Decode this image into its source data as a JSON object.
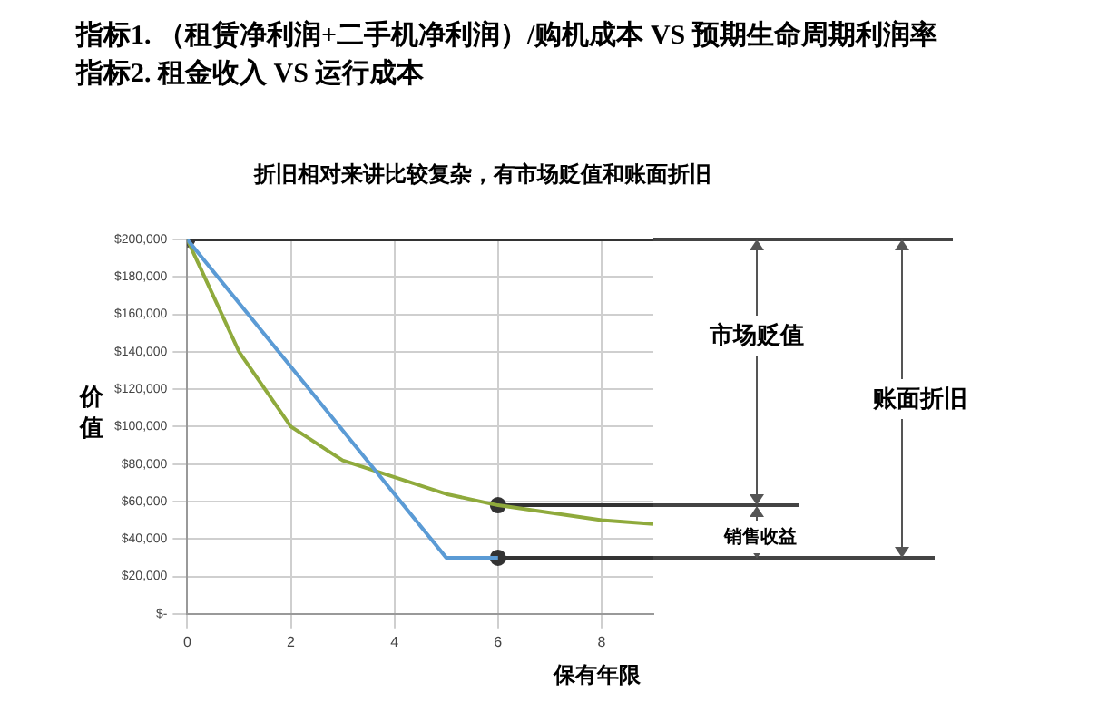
{
  "chart_data": {
    "type": "line",
    "title": "指标1. （租赁净利润+二手机净利润）/购机成本 VS 预期生命周期利润率",
    "subtitle": "指标2.  租金收入 VS 运行成本",
    "xlabel": "保有年限",
    "ylabel": "价值",
    "xlim": [
      0,
      9
    ],
    "xticks": [
      0,
      2,
      4,
      6,
      8
    ],
    "ylim": [
      0,
      200000
    ],
    "yticks": [
      {
        "value": 0,
        "label": "$-"
      },
      {
        "value": 20000,
        "label": "$20,000"
      },
      {
        "value": 40000,
        "label": "$40,000"
      },
      {
        "value": 60000,
        "label": "$60,000"
      },
      {
        "value": 80000,
        "label": "$80,000"
      },
      {
        "value": 100000,
        "label": "$100,000"
      },
      {
        "value": 120000,
        "label": "$120,000"
      },
      {
        "value": 140000,
        "label": "$140,000"
      },
      {
        "value": 160000,
        "label": "$160,000"
      },
      {
        "value": 180000,
        "label": "$180,000"
      },
      {
        "value": 200000,
        "label": "$200,000"
      }
    ],
    "grid": true,
    "legend": false,
    "line_style": "solid",
    "series": [
      {
        "color": "#5b9bd5",
        "x": [
          0,
          5,
          6
        ],
        "values": [
          200000,
          30000,
          30000
        ]
      },
      {
        "color": "#8faa3c",
        "x": [
          0,
          1,
          2,
          3,
          4,
          5,
          6,
          7,
          8,
          9
        ],
        "values": [
          200000,
          140000,
          100000,
          82000,
          73000,
          64000,
          58000,
          54000,
          50000,
          48000
        ]
      },
      {
        "color": "#333333",
        "marker": "circle",
        "x": [
          0,
          9
        ],
        "values": [
          200000,
          200000
        ]
      },
      {
        "color": "#333333",
        "marker": "circle",
        "x": [
          6,
          9
        ],
        "values": [
          58000,
          58000
        ]
      },
      {
        "color": "#333333",
        "marker": "circle",
        "x": [
          6,
          9
        ],
        "values": [
          30000,
          30000
        ]
      }
    ],
    "annotations": [
      "折旧相对来讲比较复杂，有市场贬值和账面折旧",
      "市场贬值",
      "销售收益",
      "账面折旧"
    ]
  }
}
